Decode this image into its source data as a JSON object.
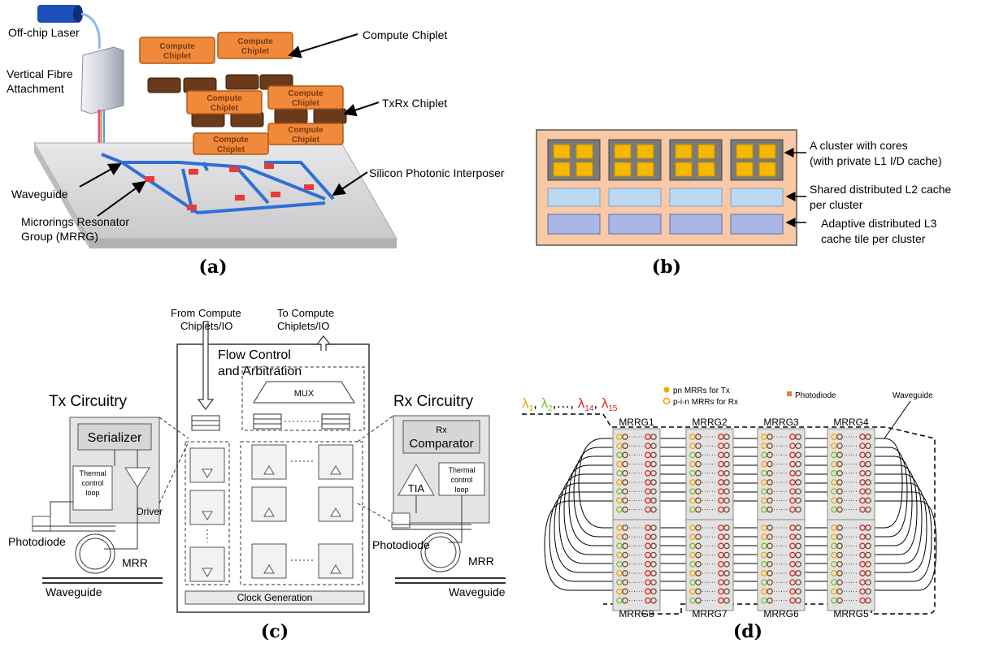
{
  "captions": {
    "a": "(a)",
    "b": "(b)",
    "c": "(c)",
    "d": "(d)"
  },
  "panel_a": {
    "laser": "Off-chip Laser",
    "fibre_line1": "Vertical Fibre",
    "fibre_line2": "Attachment",
    "compute_chiplet": "Compute Chiplet",
    "txrx_chiplet": "TxRx Chiplet",
    "interposer": "Silicon Photonic Interposer",
    "waveguide": "Waveguide",
    "mrrg_line1": "Microrings Resonator",
    "mrrg_line2": "Group (MRRG)",
    "chip_word1": "Compute",
    "chip_word2": "Chiplet"
  },
  "panel_b": {
    "cluster_line1": "A cluster with cores",
    "cluster_line2": "(with private  L1 I/D cache)",
    "l2_line1": "Shared distributed L2 cache",
    "l2_line2": "per cluster",
    "l3_line1": "Adaptive distributed L3",
    "l3_line2": "cache tile per cluster"
  },
  "panel_c": {
    "from_line1": "From Compute",
    "from_line2": "Chiplets/IO",
    "to_line1": "To Compute",
    "to_line2": "Chiplets/IO",
    "flow_line1": "Flow Control",
    "flow_line2": "and Arbitration",
    "mux": "MUX",
    "tx_title": "Tx Circuitry",
    "serializer": "Serializer",
    "thermal_line1": "Thermal",
    "thermal_line2": "control",
    "thermal_line3": "loop",
    "driver": "Driver",
    "photodiode": "Photodiode",
    "mrr": "MRR",
    "waveguide": "Waveguide",
    "rx_title": "Rx Circuitry",
    "rx_line1": "Rx",
    "rx_line2": "Comparator",
    "tia": "TIA",
    "clock": "Clock Generation"
  },
  "panel_d": {
    "lambda_1": "λ",
    "lambda_sub1": "1",
    "lambda_sub2": "2",
    "lambda_dots": ",…,",
    "lambda_sub14": "14",
    "lambda_sub15": "15",
    "legend_pn": "pn MRRs for Tx",
    "legend_pin": "p-i-n MRRs for Rx",
    "legend_pd": "Photodiode",
    "waveguide": "Waveguide",
    "groups_top": [
      "MRRG1",
      "MRRG2",
      "MRRG3",
      "MRRG4"
    ],
    "groups_bottom": [
      "MRRG8",
      "MRRG7",
      "MRRG6",
      "MRRG5"
    ]
  },
  "colors": {
    "chiplet": "#f0893a",
    "txrx": "#6b3a1a",
    "waveguide": "#2f6fd6",
    "mrr": "#e83a3a",
    "die": "#f9c8a4",
    "core": "#f5b800",
    "l2": "#bcd7f0",
    "l3": "#a9b7e6",
    "lambda1": "#e0a800",
    "lambda2": "#7bbf2a",
    "lambda14": "#e02020"
  }
}
